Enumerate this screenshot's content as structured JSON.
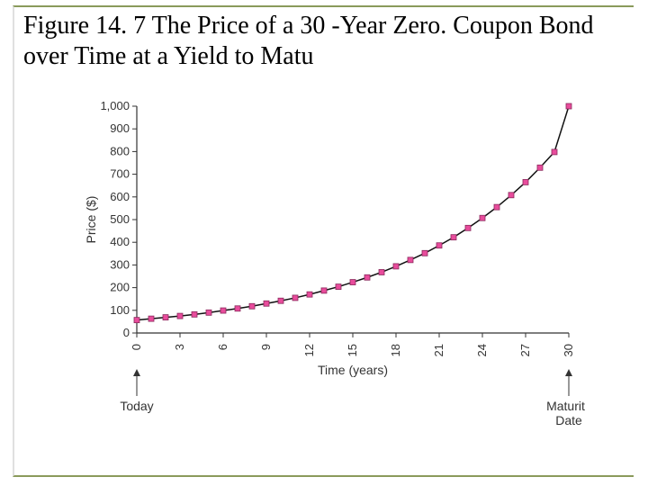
{
  "title": "Figure 14. 7 The Price of a 30 -Year Zero. Coupon Bond over Time at a Yield to Matu",
  "chart": {
    "type": "line+scatter",
    "background_color": "#ffffff",
    "axis_color": "#333333",
    "grid": false,
    "line_color": "#111111",
    "line_width": 1.5,
    "marker_shape": "square",
    "marker_size": 6,
    "marker_fill": "#e84c9c",
    "marker_stroke": "#8a2a5c",
    "xlabel": "Time (years)",
    "ylabel": "Price ($)",
    "label_fontsize": 14,
    "tick_fontsize": 13,
    "xlim": [
      0,
      30
    ],
    "ylim": [
      0,
      1000
    ],
    "xticks": [
      0,
      3,
      6,
      9,
      12,
      15,
      18,
      21,
      24,
      27,
      30
    ],
    "yticks": [
      0,
      100,
      200,
      300,
      400,
      500,
      600,
      700,
      800,
      900,
      1000
    ],
    "x": [
      0,
      1,
      2,
      3,
      4,
      5,
      6,
      7,
      8,
      9,
      10,
      11,
      12,
      13,
      14,
      15,
      16,
      17,
      18,
      19,
      20,
      21,
      22,
      23,
      24,
      25,
      26,
      27,
      28,
      29,
      30
    ],
    "y": [
      57,
      63,
      69,
      75,
      82,
      90,
      99,
      108,
      118,
      130,
      142,
      155,
      170,
      187,
      204,
      224,
      245,
      268,
      294,
      322,
      352,
      386,
      422,
      463,
      507,
      555,
      608,
      665,
      729,
      798,
      1000
    ],
    "annotations": {
      "today": {
        "label": "Today",
        "x": 0
      },
      "maturity": {
        "label": "Maturity",
        "label2": "Date",
        "x": 30
      }
    }
  }
}
